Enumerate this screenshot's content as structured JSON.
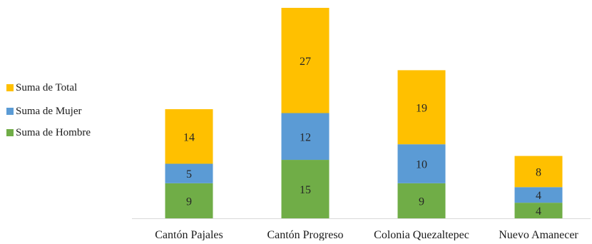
{
  "chart_data": {
    "type": "bar",
    "stacked": true,
    "title": "",
    "xlabel": "",
    "ylabel": "",
    "categories": [
      "Cantón Pajales",
      "Cantón Progreso",
      "Colonia Quezaltepec",
      "Nuevo Amanecer"
    ],
    "series": [
      {
        "name": "Suma de Hombre",
        "color": "#70ad47",
        "values": [
          9,
          15,
          9,
          4
        ]
      },
      {
        "name": "Suma de Mujer",
        "color": "#5b9bd5",
        "values": [
          5,
          12,
          10,
          4
        ]
      },
      {
        "name": "Suma de Total",
        "color": "#ffc000",
        "values": [
          14,
          27,
          19,
          8
        ]
      }
    ],
    "legend": {
      "position": "left",
      "entries": [
        "Suma de Total",
        "Suma de Mujer",
        "Suma de Hombre"
      ]
    },
    "grid": false,
    "axis_line_color": "#d9d9d9"
  }
}
